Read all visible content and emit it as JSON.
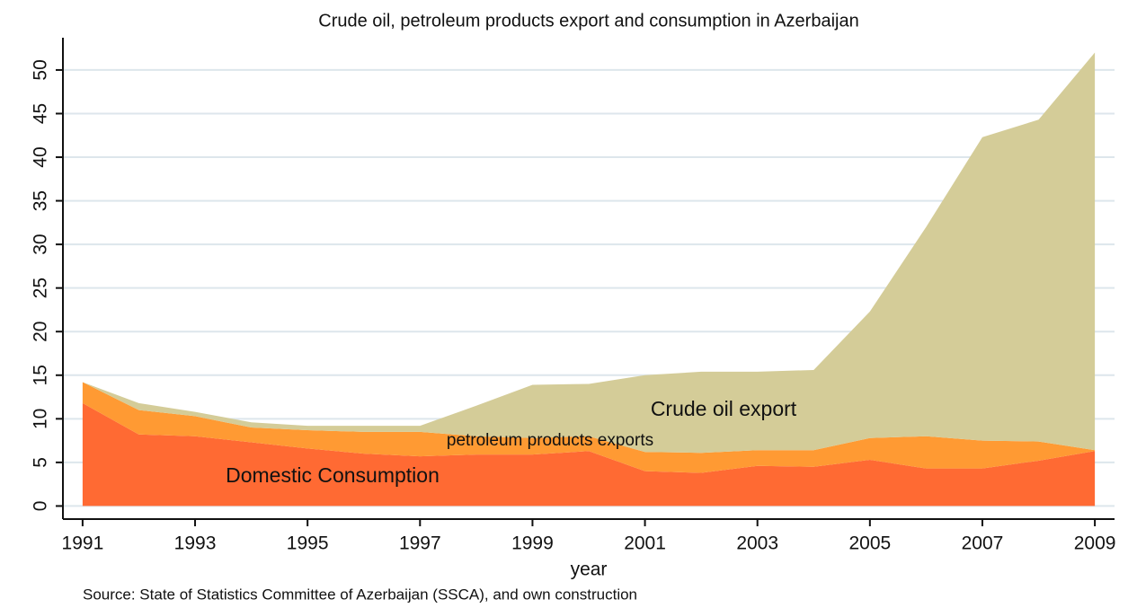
{
  "chart_data": {
    "type": "stacked_area",
    "title": "Crude oil, petroleum products export and consumption in Azerbaijan",
    "x_label": "year",
    "source": "Source: State of Statistics Committee of Azerbaijan (SSCA), and own construction",
    "x": [
      1991,
      1992,
      1993,
      1994,
      1995,
      1996,
      1997,
      1998,
      1999,
      2000,
      2001,
      2002,
      2003,
      2004,
      2005,
      2006,
      2007,
      2008,
      2009
    ],
    "series": [
      {
        "name": "Domestic Consumption",
        "color": "#ff6a33",
        "values": [
          11.8,
          8.2,
          8.0,
          7.3,
          6.6,
          6.0,
          5.7,
          5.9,
          5.9,
          6.3,
          4.0,
          3.8,
          4.6,
          4.5,
          5.3,
          4.3,
          4.3,
          5.2,
          6.3
        ]
      },
      {
        "name": "petroleum products exports",
        "color": "#ff9a33",
        "values": [
          2.4,
          2.8,
          2.3,
          1.7,
          2.1,
          2.5,
          2.8,
          2.1,
          1.9,
          1.7,
          2.2,
          2.3,
          1.8,
          1.9,
          2.5,
          3.7,
          3.2,
          2.2,
          0.1
        ]
      },
      {
        "name": "Crude oil export",
        "color": "#d4cc98",
        "values": [
          0,
          0.8,
          0.5,
          0.6,
          0.5,
          0.7,
          0.7,
          3.5,
          6.1,
          6.0,
          8.8,
          9.3,
          9.0,
          9.2,
          14.5,
          24.0,
          34.8,
          36.9,
          45.6
        ]
      }
    ],
    "xlim": [
      1990.65,
      2009.35
    ],
    "xticks": [
      1991,
      1993,
      1995,
      1997,
      1999,
      2001,
      2003,
      2005,
      2007,
      2009
    ],
    "ylim": [
      -1.5,
      53.7
    ],
    "yticks": [
      0,
      5,
      10,
      15,
      20,
      25,
      30,
      35,
      40,
      45,
      50
    ],
    "grid": true
  }
}
